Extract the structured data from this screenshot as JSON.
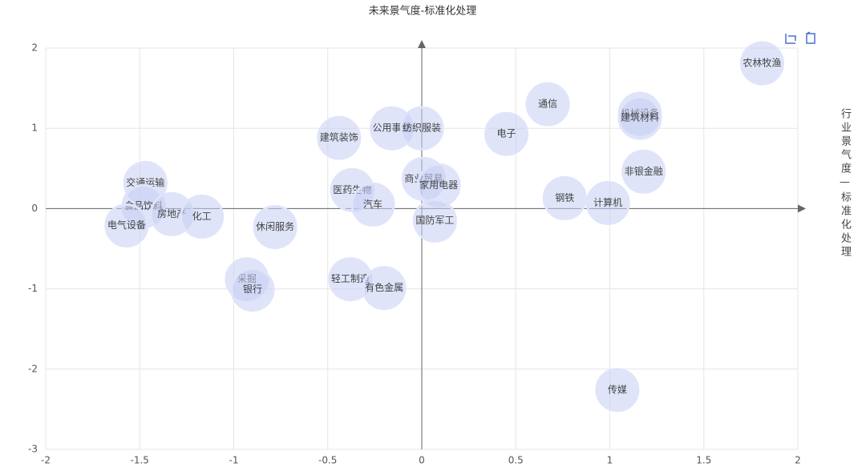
{
  "chart_data": {
    "type": "scatter",
    "title": "未来景气度-标准化处理",
    "y_label": "行业景气度—标准化处理",
    "labels": [
      "农林牧渔",
      "通信",
      "机械设备",
      "建筑材料",
      "公用事业",
      "纺织服装",
      "电子",
      "建筑装饰",
      "非银金融",
      "交通运输",
      "商业贸易",
      "家用电器",
      "医药生物",
      "钢铁",
      "计算机",
      "汽车",
      "食品饮料",
      "房地产",
      "化工",
      "国防军工",
      "电气设备",
      "休闲服务",
      "采掘",
      "银行",
      "轻工制造",
      "有色金属",
      "传媒"
    ],
    "x": [
      1.81,
      0.67,
      1.16,
      1.16,
      -0.16,
      0.0,
      0.45,
      -0.44,
      1.18,
      -1.47,
      0.01,
      0.09,
      -0.37,
      0.76,
      0.99,
      -0.26,
      -1.48,
      -1.33,
      -1.17,
      0.07,
      -1.57,
      -0.78,
      -0.93,
      -0.9,
      -0.38,
      -0.2,
      1.04
    ],
    "values": [
      1.81,
      1.3,
      1.18,
      1.13,
      1.0,
      1.0,
      0.93,
      0.88,
      0.46,
      0.32,
      0.37,
      0.29,
      0.23,
      0.13,
      0.07,
      0.05,
      0.03,
      -0.07,
      -0.1,
      -0.15,
      -0.21,
      -0.23,
      -0.88,
      -1.01,
      -0.88,
      -0.99,
      -2.26
    ],
    "color": "#c5cdf3",
    "xlim": [
      -2,
      2
    ],
    "xticks": [
      -2,
      -1.5,
      -1,
      -0.5,
      0,
      0.5,
      1,
      1.5,
      2
    ],
    "ylim": [
      -3,
      2
    ],
    "yticks": [
      -3,
      -2,
      -1,
      0,
      1,
      2
    ],
    "grid": true
  }
}
